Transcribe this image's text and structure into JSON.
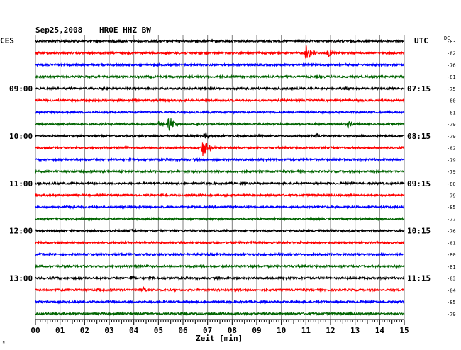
{
  "header": {
    "date": "Sep25,2008",
    "station": "HROE HHZ BW",
    "left_zone": "CES",
    "right_zone": "UTC",
    "dc_label": "DC"
  },
  "chart_data": {
    "type": "line",
    "title": "Sep25,2008  HROE HHZ BW",
    "xlabel": "Zeit [min]",
    "ylabel": "",
    "x_ticks": [
      "00",
      "01",
      "02",
      "03",
      "04",
      "05",
      "06",
      "07",
      "08",
      "09",
      "10",
      "11",
      "12",
      "13",
      "14",
      "15"
    ],
    "xlim": [
      0,
      15
    ],
    "grid": true,
    "trace_colors": [
      "#000000",
      "#ff0000",
      "#0000ff",
      "#006400"
    ],
    "left_time_labels": [
      {
        "trace": 4,
        "text": "09:00"
      },
      {
        "trace": 8,
        "text": "10:00"
      },
      {
        "trace": 12,
        "text": "11:00"
      },
      {
        "trace": 16,
        "text": "12:00"
      },
      {
        "trace": 20,
        "text": "13:00"
      }
    ],
    "right_time_labels": [
      {
        "trace": 4,
        "text": "07:15"
      },
      {
        "trace": 8,
        "text": "08:15"
      },
      {
        "trace": 12,
        "text": "09:15"
      },
      {
        "trace": 16,
        "text": "10:15"
      },
      {
        "trace": 20,
        "text": "11:15"
      }
    ],
    "dc_offsets": [
      -83,
      -82,
      -76,
      -81,
      -75,
      -80,
      -81,
      -79,
      -79,
      -82,
      -79,
      -79,
      -80,
      -79,
      -85,
      -77,
      -76,
      -81,
      -80,
      -81,
      -83,
      -84,
      -85,
      -79
    ],
    "events": [
      {
        "trace": 1,
        "minute": 11.0,
        "amplitude": 12
      },
      {
        "trace": 1,
        "minute": 11.9,
        "amplitude": 7
      },
      {
        "trace": 7,
        "minute": 5.4,
        "amplitude": 13
      },
      {
        "trace": 7,
        "minute": 5.0,
        "amplitude": 4
      },
      {
        "trace": 7,
        "minute": 6.6,
        "amplitude": 4
      },
      {
        "trace": 7,
        "minute": 12.7,
        "amplitude": 5
      },
      {
        "trace": 8,
        "minute": 11.4,
        "amplitude": 4
      },
      {
        "trace": 8,
        "minute": 6.9,
        "amplitude": 5
      },
      {
        "trace": 9,
        "minute": 6.8,
        "amplitude": 13
      },
      {
        "trace": 14,
        "minute": 1.5,
        "amplitude": 4
      },
      {
        "trace": 16,
        "minute": 3.9,
        "amplitude": 3
      },
      {
        "trace": 20,
        "minute": 3.9,
        "amplitude": 4
      },
      {
        "trace": 21,
        "minute": 2.5,
        "amplitude": 3
      },
      {
        "trace": 21,
        "minute": 4.4,
        "amplitude": 4
      }
    ],
    "corner_mark": "ᴹ"
  }
}
